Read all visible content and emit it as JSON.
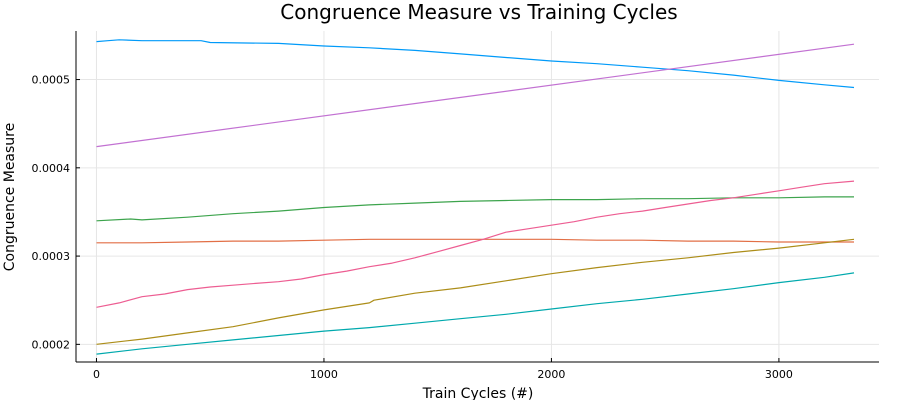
{
  "chart_data": {
    "type": "line",
    "title": "Congruence Measure vs Training Cycles",
    "xlabel": "Train Cycles (#)",
    "ylabel": "Congruence Measure",
    "xlim": [
      -90,
      3440
    ],
    "ylim": [
      0.00018,
      0.000555
    ],
    "grid": true,
    "legend": "none",
    "x_ticks": [
      0,
      1000,
      2000,
      3000
    ],
    "x_tick_labels": [
      "0",
      "1000",
      "2000",
      "3000"
    ],
    "y_ticks": [
      0.0002,
      0.0003,
      0.0004,
      0.0005
    ],
    "y_tick_labels": [
      "0.0002",
      "0.0003",
      "0.0004",
      "0.0005"
    ],
    "series": [
      {
        "name": "series-1",
        "color": "#009af9",
        "x": [
          0,
          50,
          100,
          200,
          300,
          400,
          460,
          500,
          800,
          1000,
          1200,
          1400,
          1600,
          1800,
          2000,
          2200,
          2400,
          2600,
          2800,
          3000,
          3200,
          3330
        ],
        "y": [
          0.000543,
          0.000544,
          0.000545,
          0.000544,
          0.000544,
          0.000544,
          0.000544,
          0.000542,
          0.000541,
          0.000538,
          0.000536,
          0.000533,
          0.000529,
          0.000525,
          0.000521,
          0.000518,
          0.000514,
          0.00051,
          0.000505,
          0.000499,
          0.000494,
          0.000491
        ]
      },
      {
        "name": "series-2",
        "color": "#e26f46",
        "x": [
          0,
          200,
          400,
          600,
          800,
          1000,
          1200,
          1400,
          1600,
          1800,
          2000,
          2200,
          2400,
          2600,
          2800,
          3000,
          3200,
          3330
        ],
        "y": [
          0.000315,
          0.000315,
          0.000316,
          0.000317,
          0.000317,
          0.000318,
          0.000319,
          0.000319,
          0.000319,
          0.000319,
          0.000319,
          0.000318,
          0.000318,
          0.000317,
          0.000317,
          0.000316,
          0.000316,
          0.000316
        ]
      },
      {
        "name": "series-3",
        "color": "#3da44d",
        "x": [
          0,
          150,
          200,
          400,
          600,
          800,
          1000,
          1200,
          1400,
          1600,
          1800,
          2000,
          2200,
          2400,
          2600,
          2800,
          3000,
          3200,
          3330
        ],
        "y": [
          0.00034,
          0.000342,
          0.000341,
          0.000344,
          0.000348,
          0.000351,
          0.000355,
          0.000358,
          0.00036,
          0.000362,
          0.000363,
          0.000364,
          0.000364,
          0.000365,
          0.000365,
          0.000366,
          0.000366,
          0.000367,
          0.000367
        ]
      },
      {
        "name": "series-4",
        "color": "#c271d2",
        "x": [
          0,
          3330
        ],
        "y": [
          0.000424,
          0.00054
        ]
      },
      {
        "name": "series-5",
        "color": "#ac8d18",
        "x": [
          0,
          200,
          400,
          600,
          800,
          1000,
          1200,
          1220,
          1400,
          1600,
          1800,
          2000,
          2200,
          2400,
          2600,
          2800,
          3000,
          3200,
          3330
        ],
        "y": [
          0.0002,
          0.000206,
          0.000213,
          0.00022,
          0.00023,
          0.000239,
          0.000247,
          0.00025,
          0.000258,
          0.000264,
          0.000272,
          0.00028,
          0.000287,
          0.000293,
          0.000298,
          0.000304,
          0.000309,
          0.000315,
          0.000319
        ]
      },
      {
        "name": "series-6",
        "color": "#00a9ad",
        "x": [
          0,
          200,
          400,
          600,
          800,
          1000,
          1200,
          1400,
          1600,
          1800,
          2000,
          2200,
          2400,
          2600,
          2800,
          3000,
          3200,
          3330
        ],
        "y": [
          0.000189,
          0.000195,
          0.0002,
          0.000205,
          0.00021,
          0.000215,
          0.000219,
          0.000224,
          0.000229,
          0.000234,
          0.00024,
          0.000246,
          0.000251,
          0.000257,
          0.000263,
          0.00027,
          0.000276,
          0.000281
        ]
      },
      {
        "name": "series-7",
        "color": "#ed5d92",
        "x": [
          0,
          100,
          200,
          300,
          400,
          500,
          600,
          700,
          800,
          900,
          1000,
          1100,
          1200,
          1300,
          1400,
          1500,
          1600,
          1700,
          1800,
          1900,
          2000,
          2100,
          2200,
          2300,
          2400,
          2500,
          2600,
          2700,
          2800,
          2900,
          3000,
          3100,
          3200,
          3330
        ],
        "y": [
          0.000242,
          0.000247,
          0.000254,
          0.000257,
          0.000262,
          0.000265,
          0.000267,
          0.000269,
          0.000271,
          0.000274,
          0.000279,
          0.000283,
          0.000288,
          0.000292,
          0.000298,
          0.000305,
          0.000312,
          0.000319,
          0.000327,
          0.000331,
          0.000335,
          0.000339,
          0.000344,
          0.000348,
          0.000351,
          0.000355,
          0.000359,
          0.000363,
          0.000366,
          0.00037,
          0.000374,
          0.000378,
          0.000382,
          0.000385
        ]
      }
    ]
  }
}
